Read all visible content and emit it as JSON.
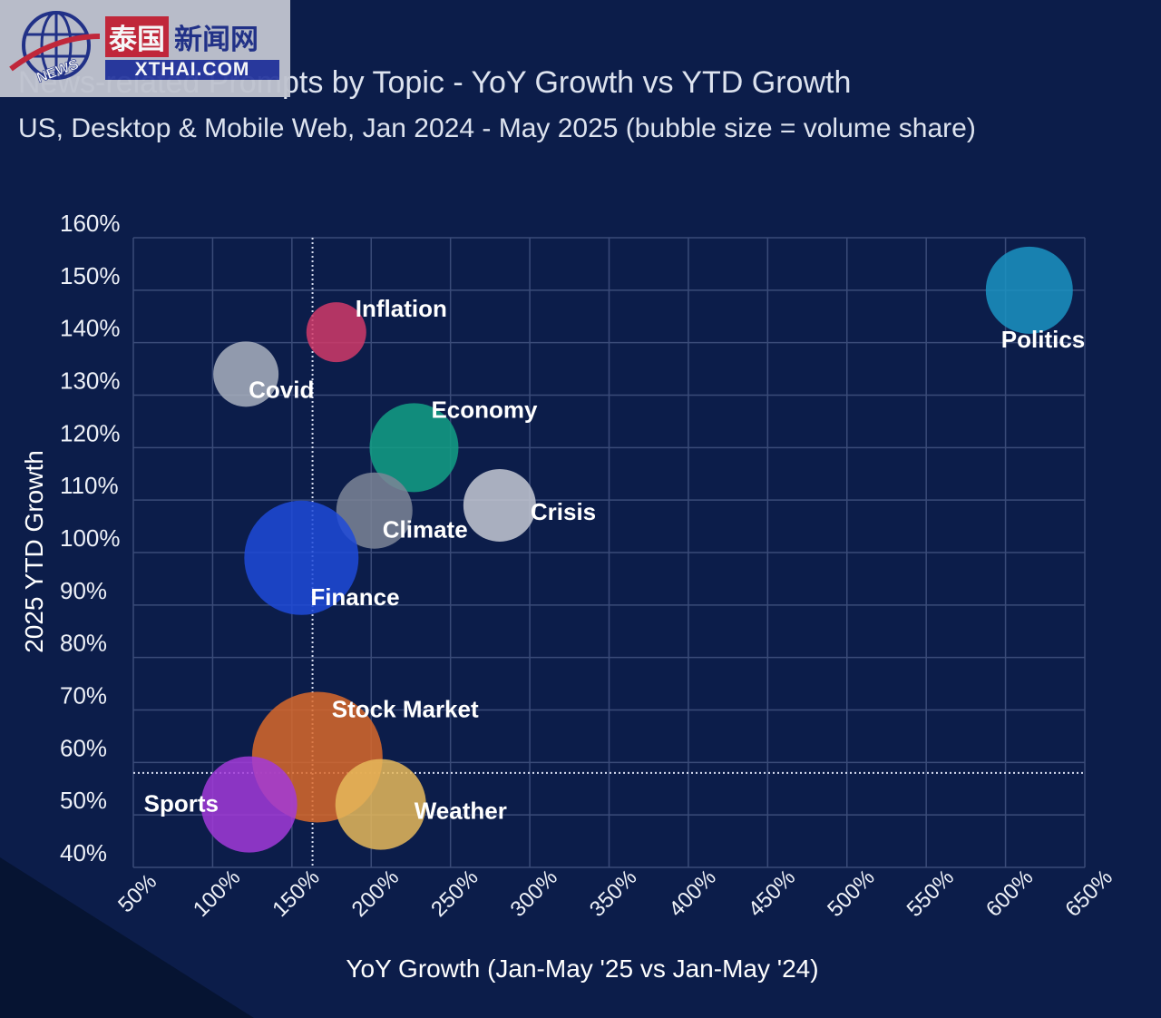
{
  "logo": {
    "badge_text": "NEWS",
    "name_cn_highlight": "泰国",
    "name_cn_rest": "新闻网",
    "domain": "XTHAI.COM"
  },
  "chart_data": {
    "type": "scatter",
    "subtype": "bubble",
    "title": "News-related Prompts by Topic - YoY Growth vs YTD Growth",
    "subtitle": "US, Desktop & Mobile Web, Jan 2024 - May 2025 (bubble size = volume share)",
    "xlabel": "YoY Growth (Jan-May '25 vs Jan-May '24)",
    "ylabel": "2025 YTD Growth",
    "xlim": [
      50,
      650
    ],
    "ylim": [
      40,
      160
    ],
    "x_ticks": [
      "50%",
      "100%",
      "150%",
      "200%",
      "250%",
      "300%",
      "350%",
      "400%",
      "450%",
      "500%",
      "550%",
      "600%",
      "650%"
    ],
    "x_tick_values": [
      50,
      100,
      150,
      200,
      250,
      300,
      350,
      400,
      450,
      500,
      550,
      600,
      650
    ],
    "y_ticks": [
      "160%",
      "150%",
      "140%",
      "130%",
      "120%",
      "110%",
      "100%",
      "90%",
      "80%",
      "70%",
      "60%",
      "50%",
      "40%"
    ],
    "y_tick_values": [
      160,
      150,
      140,
      130,
      120,
      110,
      100,
      90,
      80,
      70,
      60,
      50,
      40
    ],
    "grid": true,
    "reference_lines": {
      "x": 163,
      "y": 58,
      "style": "dotted"
    },
    "size_note": "relative volume share (estimated from bubble radius)",
    "points": [
      {
        "name": "Politics",
        "x": 615,
        "y": 150,
        "size": 48,
        "color": "#1b93c2",
        "label_pos": "below-right"
      },
      {
        "name": "Inflation",
        "x": 178,
        "y": 142,
        "size": 33,
        "color": "#d13a68",
        "label_pos": "above-right"
      },
      {
        "name": "Covid",
        "x": 121,
        "y": 134,
        "size": 36,
        "color": "#a9b0be",
        "label_pos": "below-right"
      },
      {
        "name": "Economy",
        "x": 227,
        "y": 120,
        "size": 49,
        "color": "#13a085",
        "label_pos": "above-right"
      },
      {
        "name": "Crisis",
        "x": 281,
        "y": 109,
        "size": 40,
        "color": "#c5c9d3",
        "label_pos": "right"
      },
      {
        "name": "Climate",
        "x": 202,
        "y": 108,
        "size": 42,
        "color": "#7d8596",
        "label_pos": "below-right"
      },
      {
        "name": "Finance",
        "x": 156,
        "y": 99,
        "size": 63,
        "color": "#1e4ad8",
        "label_pos": "below-right"
      },
      {
        "name": "Stock Market",
        "x": 166,
        "y": 61,
        "size": 72,
        "color": "#d9692a",
        "label_pos": "above-right"
      },
      {
        "name": "Sports",
        "x": 123,
        "y": 52,
        "size": 53,
        "color": "#a23ad8",
        "label_pos": "left"
      },
      {
        "name": "Weather",
        "x": 206,
        "y": 52,
        "size": 50,
        "color": "#e6b85a",
        "label_pos": "right"
      }
    ]
  }
}
